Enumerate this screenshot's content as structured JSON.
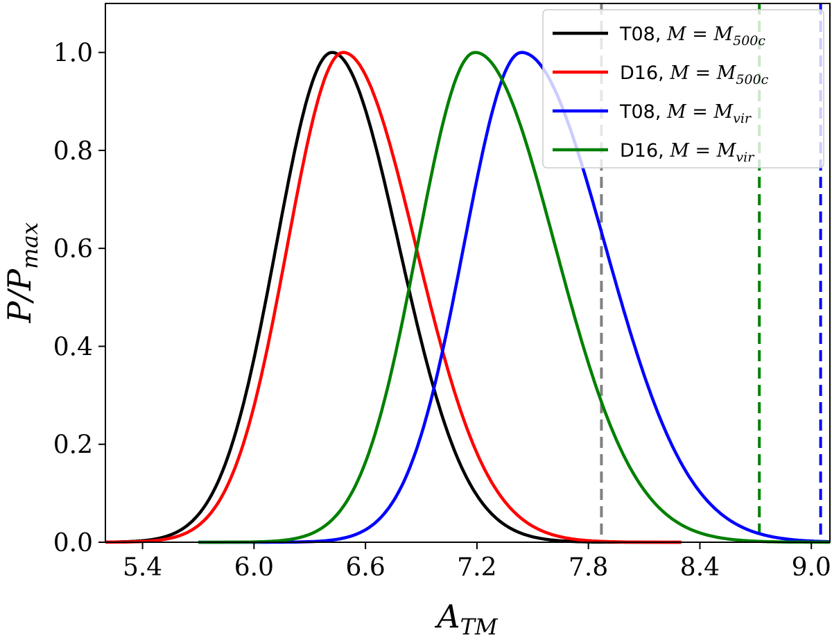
{
  "chart_data": {
    "type": "line",
    "xlabel": "A_TM",
    "ylabel": "P/P_max",
    "xlim": [
      5.2,
      9.1
    ],
    "ylim": [
      0.0,
      1.1
    ],
    "xticks": [
      5.4,
      6.0,
      6.6,
      7.2,
      7.8,
      8.4,
      9.0
    ],
    "xtick_labels": [
      "5.4",
      "6.0",
      "6.6",
      "7.2",
      "7.8",
      "8.4",
      "9.0"
    ],
    "yticks": [
      0.0,
      0.2,
      0.4,
      0.6,
      0.8,
      1.0
    ],
    "ytick_labels": [
      "0.0",
      "0.2",
      "0.4",
      "0.6",
      "0.8",
      "1.0"
    ],
    "grid": false,
    "legend_position": "top-right",
    "series": [
      {
        "name": "T08, M = M_500c",
        "legend_text": "T08,",
        "legend_math": "M = M",
        "legend_sub": "500c",
        "color": "#000000",
        "peak": 6.42,
        "sigma_left": 0.3,
        "sigma_right": 0.36,
        "x_start": 5.2,
        "x_end": 8.3
      },
      {
        "name": "D16, M = M_500c",
        "legend_text": "D16,",
        "legend_math": "M = M",
        "legend_sub": "500c",
        "color": "#ff0000",
        "peak": 6.48,
        "sigma_left": 0.3,
        "sigma_right": 0.39,
        "x_start": 5.2,
        "x_end": 8.3
      },
      {
        "name": "T08, M = M_vir",
        "legend_text": "T08,",
        "legend_math": "M = M",
        "legend_sub": "vir",
        "color": "#0000ff",
        "peak": 7.44,
        "sigma_left": 0.31,
        "sigma_right": 0.45,
        "x_start": 5.7,
        "x_end": 9.1
      },
      {
        "name": "D16, M = M_vir",
        "legend_text": "D16,",
        "legend_math": "M = M",
        "legend_sub": "vir",
        "color": "#008000",
        "peak": 7.19,
        "sigma_left": 0.31,
        "sigma_right": 0.43,
        "x_start": 5.7,
        "x_end": 9.1
      }
    ],
    "vlines": [
      {
        "x": 7.87,
        "color": "#808080",
        "style": "dashed"
      },
      {
        "x": 8.72,
        "color": "#008000",
        "style": "dashed"
      },
      {
        "x": 9.05,
        "color": "#0000ff",
        "style": "dashed"
      }
    ]
  }
}
